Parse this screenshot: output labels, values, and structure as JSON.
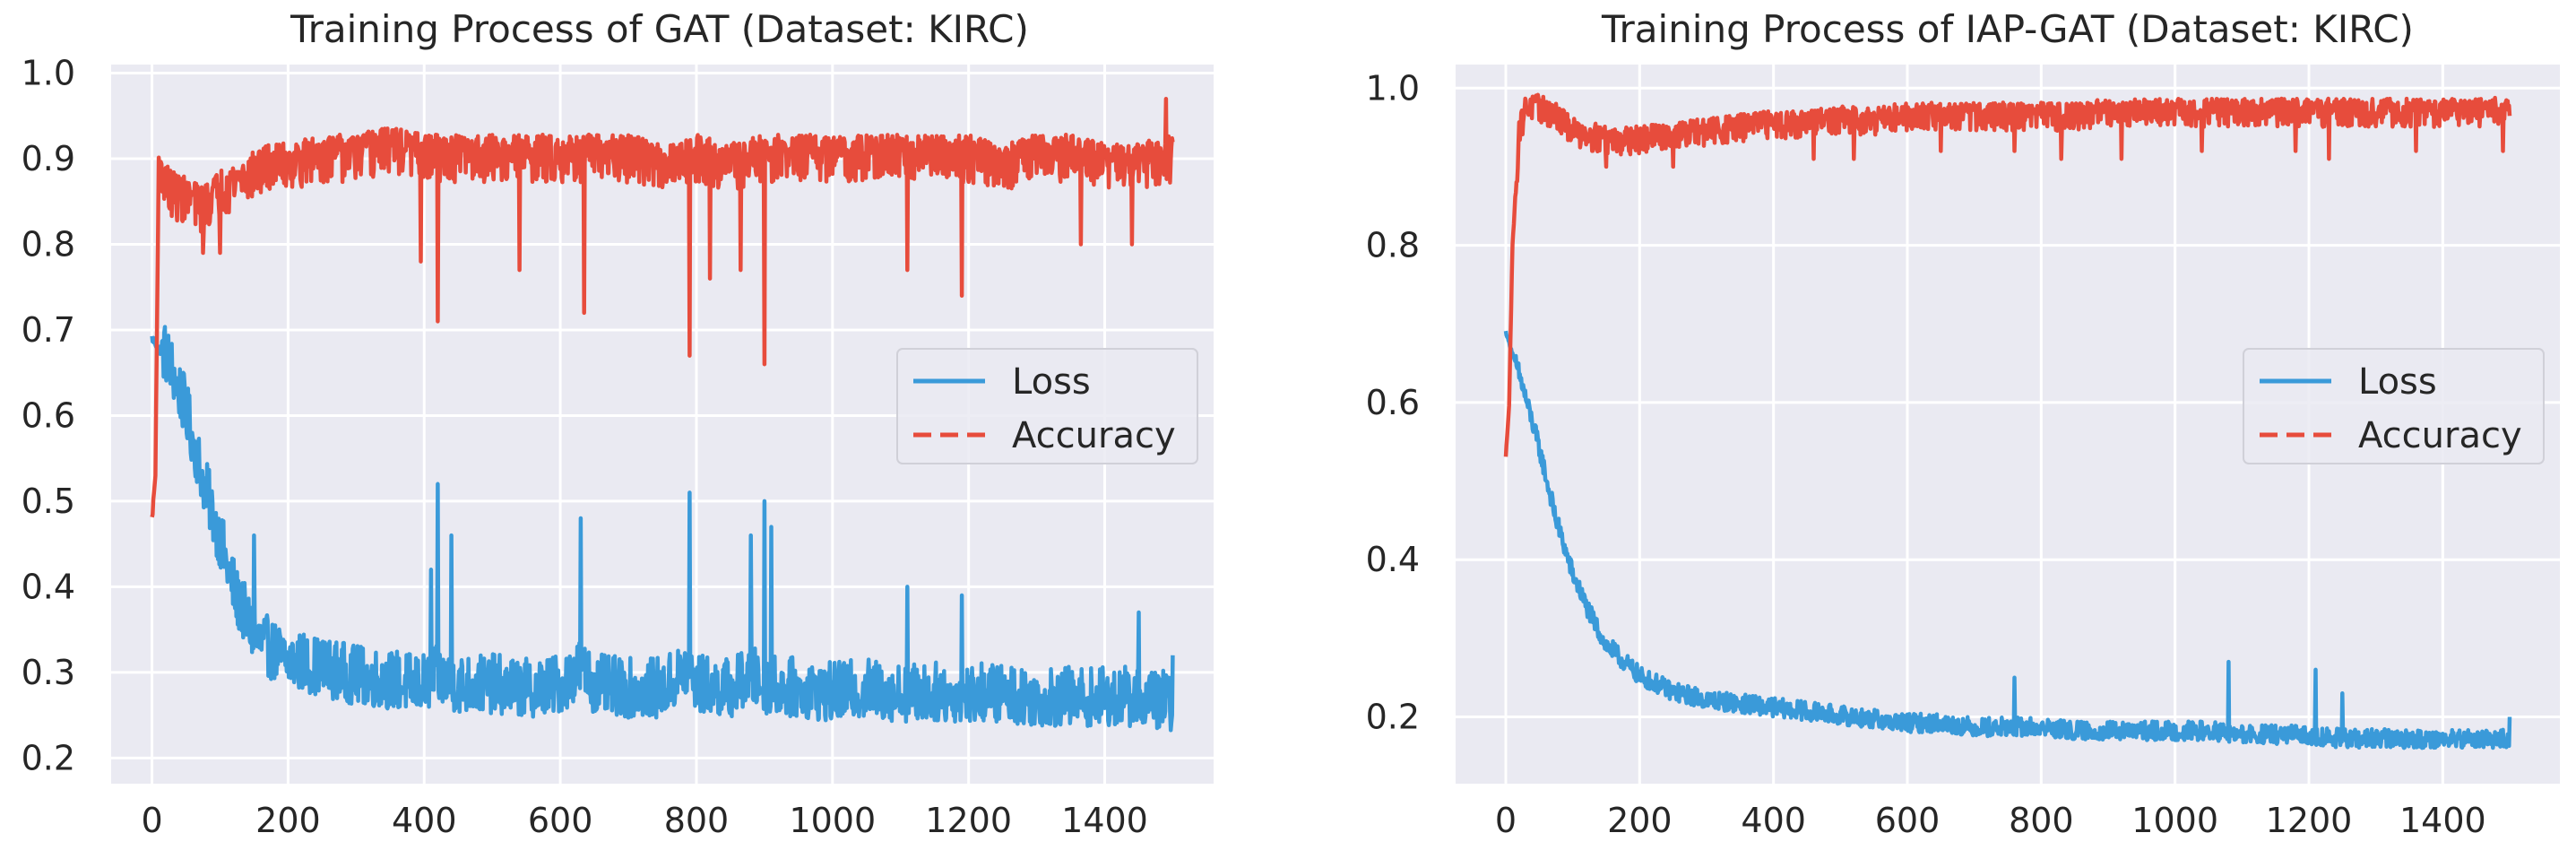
{
  "colors": {
    "background": "#eaeaf2",
    "grid": "#ffffff",
    "loss": "#3a9ad9",
    "accuracy": "#e74c3c"
  },
  "chart_data": [
    {
      "type": "line",
      "title": "Training Process of GAT (Dataset: KIRC)",
      "xlabel": "",
      "ylabel": "",
      "xlim": [
        -60,
        1560
      ],
      "ylim": [
        0.17,
        1.01
      ],
      "xticks": [
        0,
        200,
        400,
        600,
        800,
        1000,
        1200,
        1400
      ],
      "xtick_labels": [
        "0",
        "200",
        "400",
        "600",
        "800",
        "1000",
        "1200",
        "1400"
      ],
      "yticks": [
        0.2,
        0.3,
        0.4,
        0.5,
        0.6,
        0.7,
        0.8,
        0.9,
        1.0
      ],
      "ytick_labels": [
        "0.2",
        "0.3",
        "0.4",
        "0.5",
        "0.6",
        "0.7",
        "0.8",
        "0.9",
        "1.0"
      ],
      "legend": {
        "position": "center-right",
        "entries": [
          "Loss",
          "Accuracy"
        ],
        "styles": [
          "solid",
          "dashed"
        ]
      },
      "series": [
        {
          "name": "Loss",
          "color": "#3a9ad9",
          "x": [
            0,
            25,
            50,
            75,
            100,
            125,
            150,
            175,
            200,
            250,
            300,
            350,
            400,
            420,
            450,
            500,
            550,
            600,
            630,
            650,
            700,
            750,
            790,
            800,
            850,
            880,
            900,
            950,
            1000,
            1050,
            1100,
            1150,
            1200,
            1250,
            1300,
            1350,
            1400,
            1450,
            1500
          ],
          "values": [
            0.69,
            0.66,
            0.6,
            0.52,
            0.45,
            0.38,
            0.34,
            0.32,
            0.31,
            0.3,
            0.29,
            0.285,
            0.28,
            0.29,
            0.28,
            0.28,
            0.275,
            0.28,
            0.3,
            0.28,
            0.275,
            0.275,
            0.3,
            0.28,
            0.275,
            0.29,
            0.28,
            0.275,
            0.27,
            0.275,
            0.27,
            0.27,
            0.27,
            0.27,
            0.265,
            0.265,
            0.265,
            0.265,
            0.26
          ],
          "spikes": [
            [
              150,
              0.46
            ],
            [
              410,
              0.42
            ],
            [
              420,
              0.52
            ],
            [
              440,
              0.46
            ],
            [
              630,
              0.48
            ],
            [
              790,
              0.51
            ],
            [
              880,
              0.46
            ],
            [
              900,
              0.5
            ],
            [
              910,
              0.47
            ],
            [
              1110,
              0.4
            ],
            [
              1190,
              0.39
            ],
            [
              1450,
              0.37
            ],
            [
              1500,
              0.32
            ]
          ]
        },
        {
          "name": "Accuracy",
          "color": "#e74c3c",
          "x": [
            0,
            5,
            10,
            25,
            50,
            75,
            100,
            125,
            150,
            175,
            200,
            250,
            300,
            350,
            400,
            450,
            500,
            550,
            600,
            650,
            700,
            750,
            800,
            850,
            900,
            950,
            1000,
            1050,
            1100,
            1150,
            1200,
            1250,
            1300,
            1350,
            1400,
            1450,
            1500
          ],
          "values": [
            0.48,
            0.53,
            0.9,
            0.87,
            0.86,
            0.85,
            0.87,
            0.88,
            0.89,
            0.9,
            0.9,
            0.91,
            0.91,
            0.92,
            0.91,
            0.91,
            0.91,
            0.91,
            0.91,
            0.91,
            0.91,
            0.9,
            0.91,
            0.9,
            0.91,
            0.91,
            0.91,
            0.91,
            0.91,
            0.91,
            0.91,
            0.9,
            0.91,
            0.91,
            0.9,
            0.9,
            0.91
          ],
          "spikes": [
            [
              75,
              0.79
            ],
            [
              100,
              0.79
            ],
            [
              395,
              0.78
            ],
            [
              420,
              0.71
            ],
            [
              540,
              0.77
            ],
            [
              635,
              0.72
            ],
            [
              790,
              0.67
            ],
            [
              820,
              0.76
            ],
            [
              865,
              0.77
            ],
            [
              900,
              0.66
            ],
            [
              1110,
              0.77
            ],
            [
              1190,
              0.74
            ],
            [
              1365,
              0.8
            ],
            [
              1440,
              0.8
            ],
            [
              1490,
              0.97
            ]
          ]
        }
      ]
    },
    {
      "type": "line",
      "title": "Training Process of IAP-GAT (Dataset: KIRC)",
      "xlabel": "",
      "ylabel": "",
      "xlim": [
        -75,
        1575
      ],
      "ylim": [
        0.115,
        1.03
      ],
      "xticks": [
        0,
        200,
        400,
        600,
        800,
        1000,
        1200,
        1400
      ],
      "xtick_labels": [
        "0",
        "200",
        "400",
        "600",
        "800",
        "1000",
        "1200",
        "1400"
      ],
      "yticks": [
        0.2,
        0.4,
        0.6,
        0.8,
        1.0
      ],
      "ytick_labels": [
        "0.2",
        "0.4",
        "0.6",
        "0.8",
        "1.0"
      ],
      "legend": {
        "position": "center-right",
        "entries": [
          "Loss",
          "Accuracy"
        ],
        "styles": [
          "solid",
          "dashed"
        ]
      },
      "series": [
        {
          "name": "Loss",
          "color": "#3a9ad9",
          "x": [
            0,
            25,
            50,
            75,
            100,
            125,
            150,
            175,
            200,
            250,
            300,
            350,
            400,
            450,
            500,
            550,
            600,
            650,
            700,
            750,
            800,
            850,
            900,
            950,
            1000,
            1050,
            1100,
            1150,
            1200,
            1250,
            1300,
            1350,
            1400,
            1450,
            1500
          ],
          "values": [
            0.69,
            0.62,
            0.54,
            0.45,
            0.38,
            0.33,
            0.29,
            0.27,
            0.25,
            0.23,
            0.22,
            0.215,
            0.21,
            0.205,
            0.2,
            0.195,
            0.19,
            0.19,
            0.185,
            0.185,
            0.185,
            0.18,
            0.18,
            0.18,
            0.18,
            0.18,
            0.175,
            0.175,
            0.175,
            0.17,
            0.17,
            0.17,
            0.17,
            0.17,
            0.17
          ],
          "spikes": [
            [
              760,
              0.25
            ],
            [
              1080,
              0.27
            ],
            [
              1210,
              0.26
            ],
            [
              1250,
              0.23
            ],
            [
              1500,
              0.2
            ]
          ]
        },
        {
          "name": "Accuracy",
          "color": "#e74c3c",
          "x": [
            0,
            5,
            10,
            20,
            30,
            50,
            75,
            100,
            150,
            200,
            250,
            300,
            350,
            400,
            450,
            500,
            550,
            600,
            650,
            700,
            750,
            800,
            850,
            900,
            950,
            1000,
            1050,
            1100,
            1150,
            1200,
            1250,
            1300,
            1350,
            1400,
            1450,
            1500
          ],
          "values": [
            0.53,
            0.6,
            0.8,
            0.95,
            0.98,
            0.98,
            0.97,
            0.95,
            0.94,
            0.94,
            0.945,
            0.95,
            0.955,
            0.96,
            0.96,
            0.965,
            0.965,
            0.97,
            0.97,
            0.97,
            0.97,
            0.97,
            0.97,
            0.975,
            0.975,
            0.975,
            0.975,
            0.975,
            0.975,
            0.975,
            0.975,
            0.975,
            0.975,
            0.975,
            0.975,
            0.98
          ],
          "spikes": [
            [
              150,
              0.9
            ],
            [
              250,
              0.9
            ],
            [
              460,
              0.91
            ],
            [
              520,
              0.91
            ],
            [
              650,
              0.92
            ],
            [
              760,
              0.92
            ],
            [
              830,
              0.91
            ],
            [
              920,
              0.91
            ],
            [
              1040,
              0.92
            ],
            [
              1180,
              0.92
            ],
            [
              1230,
              0.91
            ],
            [
              1360,
              0.92
            ],
            [
              1490,
              0.92
            ]
          ]
        }
      ]
    }
  ]
}
